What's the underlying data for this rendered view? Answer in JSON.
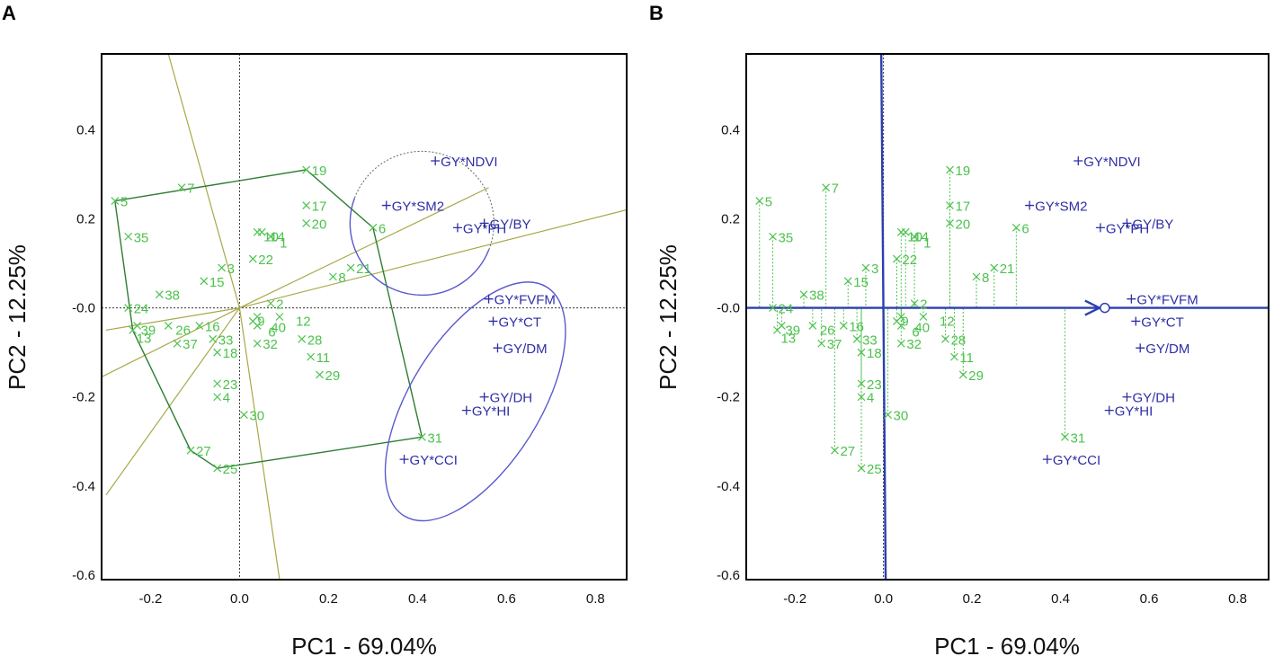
{
  "figure": {
    "panels": [
      "A",
      "B"
    ],
    "x_axis_label": "PC1 - 69.04%",
    "y_axis_label": "PC2 - 12.25%",
    "x_ticks": [
      "-0.2",
      "0.0",
      "0.2",
      "0.4",
      "0.6",
      "0.8"
    ],
    "y_ticks": [
      "0.4",
      "0.2",
      "-0.0",
      "-0.2",
      "-0.4",
      "-0.6"
    ]
  },
  "colors": {
    "genotype": "#4cc24c",
    "environment": "#2e2ea6",
    "polygon": "#2e7d32",
    "sector_line": "#a8a84a",
    "ellipse": "#5a5acf",
    "axis_arrow": "#2b3fb0"
  },
  "chart_data": [
    {
      "panel": "A",
      "type": "scatter",
      "subtype": "GGE biplot - which-won-where",
      "xlabel": "PC1 - 69.04%",
      "ylabel": "PC2 - 12.25%",
      "xlim": [
        -0.31,
        0.87
      ],
      "ylim": [
        -0.61,
        0.57
      ],
      "genotypes": [
        {
          "label": "1",
          "x": 0.07,
          "y": 0.16
        },
        {
          "label": "2",
          "x": 0.07,
          "y": 0.01
        },
        {
          "label": "3",
          "x": -0.04,
          "y": 0.09
        },
        {
          "label": "4",
          "x": -0.05,
          "y": -0.2
        },
        {
          "label": "5",
          "x": -0.28,
          "y": 0.24
        },
        {
          "label": "6",
          "x": 0.3,
          "y": 0.18
        },
        {
          "label": "7",
          "x": -0.13,
          "y": 0.27
        },
        {
          "label": "8",
          "x": 0.21,
          "y": 0.07
        },
        {
          "label": "9",
          "x": 0.04,
          "y": -0.02
        },
        {
          "label": "10",
          "x": 0.05,
          "y": 0.17
        },
        {
          "label": "11",
          "x": 0.16,
          "y": -0.11
        },
        {
          "label": "12",
          "x": 0.09,
          "y": -0.02
        },
        {
          "label": "13",
          "x": -0.24,
          "y": -0.05
        },
        {
          "label": "14",
          "x": 0.04,
          "y": 0.17
        },
        {
          "label": "15",
          "x": -0.08,
          "y": 0.06
        },
        {
          "label": "16",
          "x": -0.09,
          "y": -0.04
        },
        {
          "label": "17",
          "x": 0.15,
          "y": 0.23
        },
        {
          "label": "18",
          "x": -0.05,
          "y": -0.1
        },
        {
          "label": "19",
          "x": 0.15,
          "y": 0.31
        },
        {
          "label": "20",
          "x": 0.15,
          "y": 0.19
        },
        {
          "label": "21",
          "x": 0.25,
          "y": 0.09
        },
        {
          "label": "22",
          "x": 0.03,
          "y": 0.11
        },
        {
          "label": "23",
          "x": -0.05,
          "y": -0.17
        },
        {
          "label": "24",
          "x": -0.25,
          "y": 0.0
        },
        {
          "label": "25",
          "x": -0.05,
          "y": -0.36
        },
        {
          "label": "26",
          "x": -0.16,
          "y": -0.04
        },
        {
          "label": "27",
          "x": -0.11,
          "y": -0.32
        },
        {
          "label": "28",
          "x": 0.14,
          "y": -0.07
        },
        {
          "label": "29",
          "x": 0.18,
          "y": -0.15
        },
        {
          "label": "30",
          "x": 0.01,
          "y": -0.24
        },
        {
          "label": "31",
          "x": 0.41,
          "y": -0.29
        },
        {
          "label": "32",
          "x": 0.04,
          "y": -0.08
        },
        {
          "label": "33",
          "x": -0.06,
          "y": -0.07
        },
        {
          "label": "35",
          "x": -0.25,
          "y": 0.16
        },
        {
          "label": "37",
          "x": -0.14,
          "y": -0.08
        },
        {
          "label": "38",
          "x": -0.18,
          "y": 0.03
        },
        {
          "label": "39",
          "x": -0.23,
          "y": -0.04
        },
        {
          "label": "40",
          "x": 0.03,
          "y": -0.03
        },
        {
          "label": "6",
          "x": 0.04,
          "y": -0.04
        }
      ],
      "environments": [
        {
          "label": "GY*NDVI",
          "x": 0.44,
          "y": 0.33
        },
        {
          "label": "GY*SM2",
          "x": 0.33,
          "y": 0.23
        },
        {
          "label": "GY*PH",
          "x": 0.49,
          "y": 0.18
        },
        {
          "label": "GY/BY",
          "x": 0.55,
          "y": 0.19
        },
        {
          "label": "GY*FVFM",
          "x": 0.56,
          "y": 0.02
        },
        {
          "label": "GY*CT",
          "x": 0.57,
          "y": -0.03
        },
        {
          "label": "GY/DM",
          "x": 0.58,
          "y": -0.09
        },
        {
          "label": "GY/DH",
          "x": 0.55,
          "y": -0.2
        },
        {
          "label": "GY*HI",
          "x": 0.51,
          "y": -0.23
        },
        {
          "label": "GY*CCI",
          "x": 0.37,
          "y": -0.34
        }
      ],
      "polygon_vertices": [
        "5",
        "19",
        "6",
        "31",
        "25",
        "27",
        "13"
      ]
    },
    {
      "panel": "B",
      "type": "scatter",
      "subtype": "GGE biplot - mean vs stability (average environment coordination)",
      "xlabel": "PC1 - 69.04%",
      "ylabel": "PC2 - 12.25%",
      "xlim": [
        -0.31,
        0.87
      ],
      "ylim": [
        -0.61,
        0.57
      ],
      "genotypes": [
        {
          "label": "1",
          "x": 0.07,
          "y": 0.16
        },
        {
          "label": "2",
          "x": 0.07,
          "y": 0.01
        },
        {
          "label": "3",
          "x": -0.04,
          "y": 0.09
        },
        {
          "label": "4",
          "x": -0.05,
          "y": -0.2
        },
        {
          "label": "5",
          "x": -0.28,
          "y": 0.24
        },
        {
          "label": "6",
          "x": 0.3,
          "y": 0.18
        },
        {
          "label": "7",
          "x": -0.13,
          "y": 0.27
        },
        {
          "label": "8",
          "x": 0.21,
          "y": 0.07
        },
        {
          "label": "9",
          "x": 0.04,
          "y": -0.02
        },
        {
          "label": "10",
          "x": 0.05,
          "y": 0.17
        },
        {
          "label": "11",
          "x": 0.16,
          "y": -0.11
        },
        {
          "label": "12",
          "x": 0.09,
          "y": -0.02
        },
        {
          "label": "13",
          "x": -0.24,
          "y": -0.05
        },
        {
          "label": "14",
          "x": 0.04,
          "y": 0.17
        },
        {
          "label": "15",
          "x": -0.08,
          "y": 0.06
        },
        {
          "label": "16",
          "x": -0.09,
          "y": -0.04
        },
        {
          "label": "17",
          "x": 0.15,
          "y": 0.23
        },
        {
          "label": "18",
          "x": -0.05,
          "y": -0.1
        },
        {
          "label": "19",
          "x": 0.15,
          "y": 0.31
        },
        {
          "label": "20",
          "x": 0.15,
          "y": 0.19
        },
        {
          "label": "21",
          "x": 0.25,
          "y": 0.09
        },
        {
          "label": "22",
          "x": 0.03,
          "y": 0.11
        },
        {
          "label": "23",
          "x": -0.05,
          "y": -0.17
        },
        {
          "label": "24",
          "x": -0.25,
          "y": 0.0
        },
        {
          "label": "25",
          "x": -0.05,
          "y": -0.36
        },
        {
          "label": "26",
          "x": -0.16,
          "y": -0.04
        },
        {
          "label": "27",
          "x": -0.11,
          "y": -0.32
        },
        {
          "label": "28",
          "x": 0.14,
          "y": -0.07
        },
        {
          "label": "29",
          "x": 0.18,
          "y": -0.15
        },
        {
          "label": "30",
          "x": 0.01,
          "y": -0.24
        },
        {
          "label": "31",
          "x": 0.41,
          "y": -0.29
        },
        {
          "label": "32",
          "x": 0.04,
          "y": -0.08
        },
        {
          "label": "33",
          "x": -0.06,
          "y": -0.07
        },
        {
          "label": "35",
          "x": -0.25,
          "y": 0.16
        },
        {
          "label": "37",
          "x": -0.14,
          "y": -0.08
        },
        {
          "label": "38",
          "x": -0.18,
          "y": 0.03
        },
        {
          "label": "39",
          "x": -0.23,
          "y": -0.04
        },
        {
          "label": "40",
          "x": 0.03,
          "y": -0.03
        },
        {
          "label": "6",
          "x": 0.04,
          "y": -0.04
        }
      ],
      "environments": [
        {
          "label": "GY*NDVI",
          "x": 0.44,
          "y": 0.33
        },
        {
          "label": "GY*SM2",
          "x": 0.33,
          "y": 0.23
        },
        {
          "label": "GY*PH",
          "x": 0.49,
          "y": 0.18
        },
        {
          "label": "GY/BY",
          "x": 0.55,
          "y": 0.19
        },
        {
          "label": "GY*FVFM",
          "x": 0.56,
          "y": 0.02
        },
        {
          "label": "GY*CT",
          "x": 0.57,
          "y": -0.03
        },
        {
          "label": "GY/DM",
          "x": 0.58,
          "y": -0.09
        },
        {
          "label": "GY/DH",
          "x": 0.55,
          "y": -0.2
        },
        {
          "label": "GY*HI",
          "x": 0.51,
          "y": -0.23
        },
        {
          "label": "GY*CCI",
          "x": 0.37,
          "y": -0.34
        }
      ],
      "average_environment": {
        "x": 0.5,
        "y": 0.0
      }
    }
  ]
}
